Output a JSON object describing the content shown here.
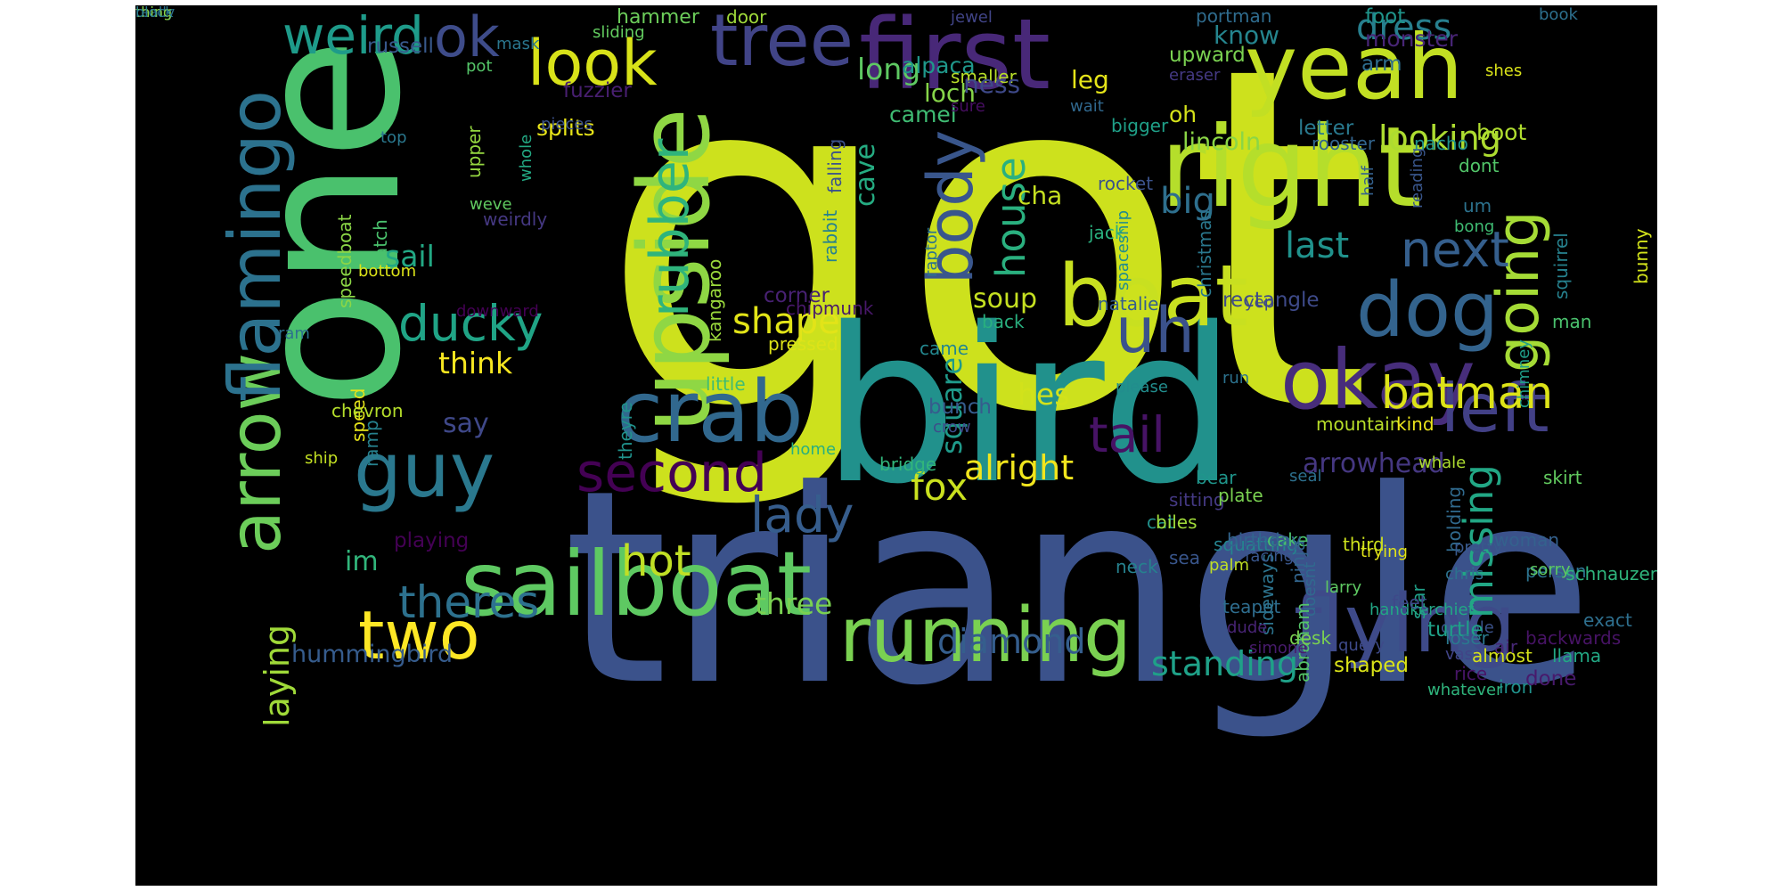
{
  "background": "#000000",
  "colormap": "viridis",
  "words": [
    {
      "text": "got",
      "color": "#cde11d"
    },
    {
      "text": "triangle",
      "color": "#3b528b"
    },
    {
      "text": "bird",
      "color": "#21918c"
    },
    {
      "text": "one",
      "color": "#4ac16d"
    },
    {
      "text": "first",
      "color": "#482878"
    },
    {
      "text": "yeah",
      "color": "#c2df23"
    },
    {
      "text": "right",
      "color": "#b5de2b"
    },
    {
      "text": "upside",
      "color": "#8fd744"
    },
    {
      "text": "sailboat",
      "color": "#5ec962"
    },
    {
      "text": "look",
      "color": "#d8e219"
    },
    {
      "text": "tree",
      "color": "#414487"
    },
    {
      "text": "crab",
      "color": "#31688e"
    },
    {
      "text": "boat",
      "color": "#c8e020"
    },
    {
      "text": "flying",
      "color": "#3e4a89"
    },
    {
      "text": "running",
      "color": "#7ad151"
    },
    {
      "text": "okay",
      "color": "#472d7b"
    },
    {
      "text": "arrow",
      "color": "#6ccd5a"
    },
    {
      "text": "flamingo",
      "color": "#2c728e"
    },
    {
      "text": "guy",
      "color": "#2a788e"
    },
    {
      "text": "dog",
      "color": "#33638d"
    },
    {
      "text": "two",
      "color": "#fde725"
    },
    {
      "text": "rubber",
      "color": "#2fb47c"
    },
    {
      "text": "uh",
      "color": "#3b528b"
    },
    {
      "text": "left",
      "color": "#424086"
    },
    {
      "text": "second",
      "color": "#440154"
    },
    {
      "text": "body",
      "color": "#39568c"
    },
    {
      "text": "going",
      "color": "#a5db36"
    },
    {
      "text": "ducky",
      "color": "#20a486"
    },
    {
      "text": "batman",
      "color": "#dde318"
    },
    {
      "text": "ok",
      "color": "#3e4c8a"
    },
    {
      "text": "weird",
      "color": "#1e9b8a"
    },
    {
      "text": "next",
      "color": "#355f8d"
    },
    {
      "text": "theres",
      "color": "#2d718e"
    },
    {
      "text": "house",
      "color": "#2ab07f"
    },
    {
      "text": "tail",
      "color": "#471365"
    },
    {
      "text": "missing",
      "color": "#22a785"
    },
    {
      "text": "lady",
      "color": "#365d8d"
    },
    {
      "text": "hot",
      "color": "#c0df25"
    },
    {
      "text": "laying",
      "color": "#a0da39"
    },
    {
      "text": "shape",
      "color": "#e2e418"
    },
    {
      "text": "fox",
      "color": "#cae11f"
    },
    {
      "text": "alright",
      "color": "#f1e51d"
    },
    {
      "text": "diamond",
      "color": "#355e8d"
    },
    {
      "text": "standing",
      "color": "#1fa188"
    },
    {
      "text": "dress",
      "color": "#277f8e"
    },
    {
      "text": "looking",
      "color": "#addc30"
    },
    {
      "text": "cave",
      "color": "#25ac82"
    },
    {
      "text": "last",
      "color": "#20928c"
    },
    {
      "text": "big",
      "color": "#2e6f8e"
    },
    {
      "text": "sail",
      "color": "#22a884"
    },
    {
      "text": "soup",
      "color": "#c5e021"
    },
    {
      "text": "think",
      "color": "#f6e620"
    },
    {
      "text": "hes",
      "color": "#d2e21b"
    },
    {
      "text": "say",
      "color": "#3f4889"
    },
    {
      "text": "square",
      "color": "#1f9a8a"
    },
    {
      "text": "arrowhead",
      "color": "#453781"
    },
    {
      "text": "three",
      "color": "#7ad151"
    },
    {
      "text": "hummingbird",
      "color": "#365c8d"
    },
    {
      "text": "im",
      "color": "#31b57b"
    },
    {
      "text": "long",
      "color": "#5ec962"
    },
    {
      "text": "loch",
      "color": "#86d549"
    },
    {
      "text": "alpaca",
      "color": "#1f988b"
    },
    {
      "text": "know",
      "color": "#25858e"
    },
    {
      "text": "leg",
      "color": "#e5e419"
    },
    {
      "text": "lincoln",
      "color": "#8bd646"
    },
    {
      "text": "oh",
      "color": "#d5e21a"
    },
    {
      "text": "foot",
      "color": "#1f958b"
    },
    {
      "text": "monster",
      "color": "#482576"
    },
    {
      "text": "boot",
      "color": "#b0dd2f"
    },
    {
      "text": "letter",
      "color": "#29798e"
    },
    {
      "text": "upward",
      "color": "#7ad151"
    },
    {
      "text": "arm",
      "color": "#2e6d8e"
    },
    {
      "text": "portman",
      "color": "#2f6c8e"
    },
    {
      "text": "book",
      "color": "#2d708e"
    },
    {
      "text": "shes",
      "color": "#dae319"
    },
    {
      "text": "hammer",
      "color": "#6ccd5a"
    },
    {
      "text": "door",
      "color": "#9fda3a"
    },
    {
      "text": "sliding",
      "color": "#62cb5f"
    },
    {
      "text": "jewel",
      "color": "#414487"
    },
    {
      "text": "russell",
      "color": "#38598c"
    },
    {
      "text": "mask",
      "color": "#2a768e"
    },
    {
      "text": "pot",
      "color": "#54c568"
    },
    {
      "text": "smaller",
      "color": "#b8de29"
    },
    {
      "text": "eraser",
      "color": "#443983"
    },
    {
      "text": "ness",
      "color": "#3e4989"
    },
    {
      "text": "camel",
      "color": "#3fbc73"
    },
    {
      "text": "fuzzier",
      "color": "#481f70"
    },
    {
      "text": "splits",
      "color": "#e7e419"
    },
    {
      "text": "sure",
      "color": "#470e61"
    },
    {
      "text": "wait",
      "color": "#30688e"
    },
    {
      "text": "bigger",
      "color": "#1fa088"
    },
    {
      "text": "rooster",
      "color": "#32658e"
    },
    {
      "text": "reading",
      "color": "#39568c"
    },
    {
      "text": "nacho",
      "color": "#20928c"
    },
    {
      "text": "dont",
      "color": "#52c569"
    },
    {
      "text": "um",
      "color": "#2c728e"
    },
    {
      "text": "top",
      "color": "#2a788e"
    },
    {
      "text": "pieces",
      "color": "#3b528b"
    },
    {
      "text": "upper",
      "color": "#95d840"
    },
    {
      "text": "whole",
      "color": "#23a983"
    },
    {
      "text": "weve",
      "color": "#60ca60"
    },
    {
      "text": "weirdly",
      "color": "#453882"
    },
    {
      "text": "cha",
      "color": "#c5e021"
    },
    {
      "text": "rocket",
      "color": "#3b528b"
    },
    {
      "text": "christmas",
      "color": "#2a788e"
    },
    {
      "text": "falling",
      "color": "#3b528b"
    },
    {
      "text": "spaceship",
      "color": "#228c8d"
    },
    {
      "text": "jack",
      "color": "#2ab07f"
    },
    {
      "text": "half",
      "color": "#34618d"
    },
    {
      "text": "bong",
      "color": "#3fbc73"
    },
    {
      "text": "speedboat",
      "color": "#8bd646"
    },
    {
      "text": "catch",
      "color": "#4ac16d"
    },
    {
      "text": "ram",
      "color": "#2d718e"
    },
    {
      "text": "kangaroo",
      "color": "#9bd93c"
    },
    {
      "text": "rabbit",
      "color": "#26818e"
    },
    {
      "text": "corner",
      "color": "#482173"
    },
    {
      "text": "chipmunk",
      "color": "#48186a"
    },
    {
      "text": "raptor",
      "color": "#2c738e"
    },
    {
      "text": "natalie",
      "color": "#355e8d"
    },
    {
      "text": "rectangle",
      "color": "#3e4a89"
    },
    {
      "text": "squirrel",
      "color": "#26818e"
    },
    {
      "text": "man",
      "color": "#4ac16d"
    },
    {
      "text": "bottom",
      "color": "#dce319"
    },
    {
      "text": "bunny",
      "color": "#d2e21b"
    },
    {
      "text": "chimney",
      "color": "#1f9e89"
    },
    {
      "text": "downward",
      "color": "#440154"
    },
    {
      "text": "came",
      "color": "#24878e"
    },
    {
      "text": "back",
      "color": "#29af7f"
    },
    {
      "text": "run",
      "color": "#2c728e"
    },
    {
      "text": "playing",
      "color": "#440154"
    },
    {
      "text": "please",
      "color": "#228d8d"
    },
    {
      "text": "speed",
      "color": "#e7e419"
    },
    {
      "text": "little",
      "color": "#3fbc73"
    },
    {
      "text": "chevron",
      "color": "#b5de2b"
    },
    {
      "text": "bunch",
      "color": "#365c8d"
    },
    {
      "text": "yep",
      "color": "#3e4a89"
    },
    {
      "text": "theyre",
      "color": "#20928c"
    },
    {
      "text": "crow",
      "color": "#3e4c8a"
    },
    {
      "text": "mountain",
      "color": "#b8de29"
    },
    {
      "text": "seal",
      "color": "#2d708e"
    },
    {
      "text": "skirt",
      "color": "#62cb5f"
    },
    {
      "text": "pressed",
      "color": "#dde318"
    },
    {
      "text": "holding",
      "color": "#306a8e"
    },
    {
      "text": "kind",
      "color": "#ece51b"
    },
    {
      "text": "whale",
      "color": "#addc30"
    },
    {
      "text": "home",
      "color": "#29af7f"
    },
    {
      "text": "ramp",
      "color": "#26818e"
    },
    {
      "text": "ship",
      "color": "#c2df23"
    },
    {
      "text": "bridge",
      "color": "#31b57b"
    },
    {
      "text": "bear",
      "color": "#1f958b"
    },
    {
      "text": "sitting",
      "color": "#443983"
    },
    {
      "text": "teapot",
      "color": "#2e6d8e"
    },
    {
      "text": "cat",
      "color": "#21918c"
    },
    {
      "text": "squatting",
      "color": "#25838e"
    },
    {
      "text": "star",
      "color": "#1fa088"
    },
    {
      "text": "cake",
      "color": "#4ac16d"
    },
    {
      "text": "sea",
      "color": "#39568c"
    },
    {
      "text": "biles",
      "color": "#a0da39"
    },
    {
      "text": "whatever",
      "color": "#2fb47c"
    },
    {
      "text": "plate",
      "color": "#7ad151"
    },
    {
      "text": "woman",
      "color": "#34618d"
    },
    {
      "text": "trying",
      "color": "#e2e418"
    },
    {
      "text": "exact",
      "color": "#2e6f8e"
    },
    {
      "text": "neck",
      "color": "#26818e"
    },
    {
      "text": "third",
      "color": "#cde11d"
    },
    {
      "text": "ninja",
      "color": "#32658e"
    },
    {
      "text": "palm",
      "color": "#c0df25"
    },
    {
      "text": "sideways",
      "color": "#2c738e"
    },
    {
      "text": "doesnt",
      "color": "#306a8e"
    },
    {
      "text": "person",
      "color": "#2c728e"
    },
    {
      "text": "pretty",
      "color": "#38598c"
    },
    {
      "text": "sorry",
      "color": "#5ec962"
    },
    {
      "text": "abraham",
      "color": "#54c568"
    },
    {
      "text": "couple",
      "color": "#3b528b"
    },
    {
      "text": "schnauzer",
      "color": "#2fb47c"
    },
    {
      "text": "birthday",
      "color": "#32658e"
    },
    {
      "text": "chris",
      "color": "#2c728e"
    },
    {
      "text": "larry",
      "color": "#5ec962"
    },
    {
      "text": "handkerchief",
      "color": "#22a785"
    },
    {
      "text": "feet",
      "color": "#3e4989"
    },
    {
      "text": "vase",
      "color": "#414487"
    },
    {
      "text": "facing",
      "color": "#39568c"
    },
    {
      "text": "query",
      "color": "#3e4a89"
    },
    {
      "text": "turtle",
      "color": "#1fa088"
    },
    {
      "text": "simone",
      "color": "#481b6d"
    },
    {
      "text": "dude",
      "color": "#482475"
    },
    {
      "text": "desk",
      "color": "#7ad151"
    },
    {
      "text": "shaped",
      "color": "#dae319"
    },
    {
      "text": "loser",
      "color": "#2a788e"
    },
    {
      "text": "almost",
      "color": "#d5e21a"
    },
    {
      "text": "rice",
      "color": "#481668"
    },
    {
      "text": "air",
      "color": "#482878"
    },
    {
      "text": "iron",
      "color": "#20928c"
    },
    {
      "text": "backwards",
      "color": "#471365"
    },
    {
      "text": "done",
      "color": "#481a6c"
    },
    {
      "text": "llama",
      "color": "#22a884"
    },
    {
      "text": "really",
      "color": "#2d708e"
    },
    {
      "text": "thing",
      "color": "#8bd646"
    },
    {
      "text": "block",
      "color": "#29798e"
    }
  ]
}
